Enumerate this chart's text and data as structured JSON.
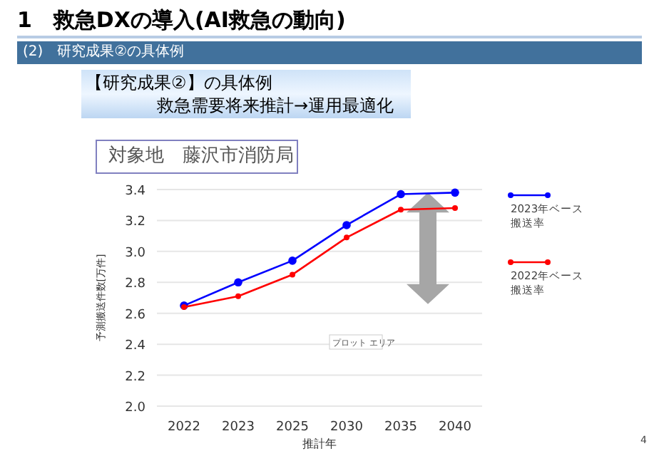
{
  "chart_data": {
    "type": "line",
    "title": "1　救急DXの導入(AI救急の動向)",
    "subtitle": "(2)　研究成果②の具体例",
    "annotations": [
      "【研究成果②】の具体例",
      "救急需要将来推計→運用最適化",
      "対象地　藤沢市消防局",
      "プロット エリア",
      "4"
    ],
    "xlabel": "推計年",
    "ylabel": "予測搬送件数[万件]",
    "categories": [
      "2022",
      "2023",
      "2025",
      "2030",
      "2035",
      "2040"
    ],
    "series": [
      {
        "name": "2023年ベース搬送率",
        "color": "#0000ff",
        "values": [
          2.65,
          2.8,
          2.94,
          3.17,
          3.37,
          3.38
        ]
      },
      {
        "name": "2022年ベース搬送率",
        "color": "#ff0000",
        "values": [
          2.64,
          2.71,
          2.85,
          3.09,
          3.27,
          3.28
        ]
      }
    ],
    "ylim": [
      2.0,
      3.4
    ],
    "yticks": [
      {
        "value": 2.0,
        "label": "2.0"
      },
      {
        "value": 2.2,
        "label": "2.2"
      },
      {
        "value": 2.4,
        "label": "2.4"
      },
      {
        "value": 2.6,
        "label": "2.6"
      },
      {
        "value": 2.8,
        "label": "2.8"
      },
      {
        "value": 3.0,
        "label": "3.0"
      },
      {
        "value": 3.2,
        "label": "3.2"
      },
      {
        "value": 3.4,
        "label": "3.4"
      }
    ],
    "grid": "y",
    "legend": "right",
    "marker": "circle",
    "line_style": "solid"
  }
}
